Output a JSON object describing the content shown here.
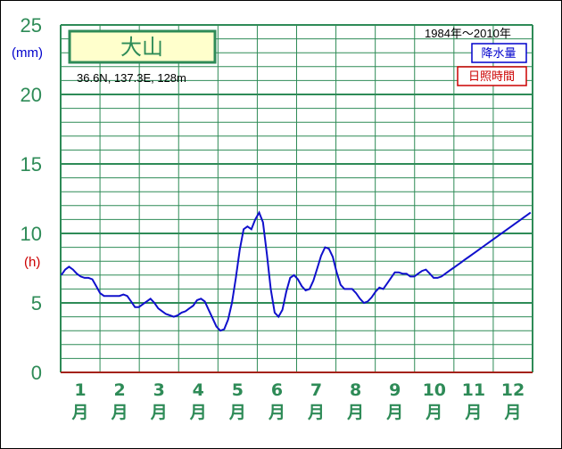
{
  "chart_data": {
    "type": "line",
    "title": "大山",
    "location": "36.6N,  137.3E,  128m",
    "period": "1984年〜2010年",
    "y_unit_precip": "(mm)",
    "y_unit_sun": "(h)",
    "ylim": [
      0,
      25
    ],
    "yticks": [
      "0",
      "5",
      "10",
      "15",
      "20",
      "25"
    ],
    "months": [
      {
        "num": "1",
        "suffix": "月"
      },
      {
        "num": "2",
        "suffix": "月"
      },
      {
        "num": "3",
        "suffix": "月"
      },
      {
        "num": "4",
        "suffix": "月"
      },
      {
        "num": "5",
        "suffix": "月"
      },
      {
        "num": "6",
        "suffix": "月"
      },
      {
        "num": "7",
        "suffix": "月"
      },
      {
        "num": "8",
        "suffix": "月"
      },
      {
        "num": "9",
        "suffix": "月"
      },
      {
        "num": "10",
        "suffix": "月"
      },
      {
        "num": "11",
        "suffix": "月"
      },
      {
        "num": "12",
        "suffix": "月"
      }
    ],
    "legend": [
      {
        "label": "降水量",
        "color": "#0000cc"
      },
      {
        "label": "日照時間",
        "color": "#cc0000"
      }
    ],
    "series": [
      {
        "name": "降水量",
        "color": "#1010cc",
        "x": [
          1,
          4,
          7,
          10,
          13,
          16,
          19,
          22,
          25,
          28,
          31,
          34,
          37,
          40,
          43,
          46,
          49,
          52,
          55,
          58,
          61,
          64,
          67,
          70,
          73,
          76,
          79,
          82,
          85,
          88,
          91,
          94,
          97,
          100,
          103,
          106,
          109,
          112,
          115,
          118,
          121,
          124,
          127,
          130,
          133,
          136,
          139,
          142,
          145,
          148,
          151,
          154,
          157,
          160,
          163,
          166,
          169,
          172,
          175,
          178,
          181,
          184,
          187,
          190,
          193,
          196,
          199,
          202,
          205,
          208,
          211,
          214,
          217,
          220,
          223,
          226,
          229,
          232,
          235,
          238,
          241,
          244,
          247,
          250,
          253,
          256,
          259,
          262,
          265,
          268,
          271,
          274,
          277,
          280,
          283,
          286,
          289,
          292,
          295,
          298,
          301,
          304,
          307,
          310,
          313,
          316,
          319,
          322,
          325,
          328,
          331,
          334,
          337,
          340,
          343,
          346,
          349,
          352,
          355,
          358,
          361,
          364
        ],
        "values": [
          7.0,
          7.4,
          7.6,
          7.4,
          7.1,
          6.9,
          6.8,
          6.8,
          6.7,
          6.2,
          5.7,
          5.5,
          5.5,
          5.5,
          5.5,
          5.5,
          5.6,
          5.5,
          5.1,
          4.7,
          4.7,
          4.9,
          5.1,
          5.3,
          5.0,
          4.6,
          4.4,
          4.2,
          4.1,
          4.0,
          4.1,
          4.3,
          4.4,
          4.6,
          4.8,
          5.2,
          5.3,
          5.1,
          4.5,
          3.9,
          3.3,
          3.0,
          3.1,
          3.8,
          5.0,
          6.8,
          8.8,
          10.3,
          10.5,
          10.3,
          11.0,
          11.5,
          10.8,
          8.5,
          6.0,
          4.3,
          4.0,
          4.5,
          5.8,
          6.8,
          7.0,
          6.7,
          6.2,
          5.9,
          6.0,
          6.6,
          7.5,
          8.4,
          9.0,
          8.9,
          8.3,
          7.2,
          6.3,
          6.0,
          6.0,
          6.0,
          5.7,
          5.3,
          5.0,
          5.1,
          5.4,
          5.8,
          6.1,
          6.0,
          6.4,
          6.8,
          7.2,
          7.2,
          7.1,
          7.1,
          6.9,
          6.9,
          7.1,
          7.3,
          7.4,
          7.1,
          6.8,
          6.8,
          6.9,
          7.1,
          7.3,
          7.5,
          7.7,
          7.9,
          8.1,
          8.3,
          8.5,
          8.7,
          8.9,
          9.1,
          9.3,
          9.5,
          9.7,
          9.9,
          10.1,
          10.3,
          10.5,
          10.7,
          10.9,
          11.1,
          11.3,
          11.5
        ]
      },
      {
        "name": "日照時間",
        "color": "#cc0000",
        "x": [],
        "values": []
      }
    ],
    "grid": true
  }
}
